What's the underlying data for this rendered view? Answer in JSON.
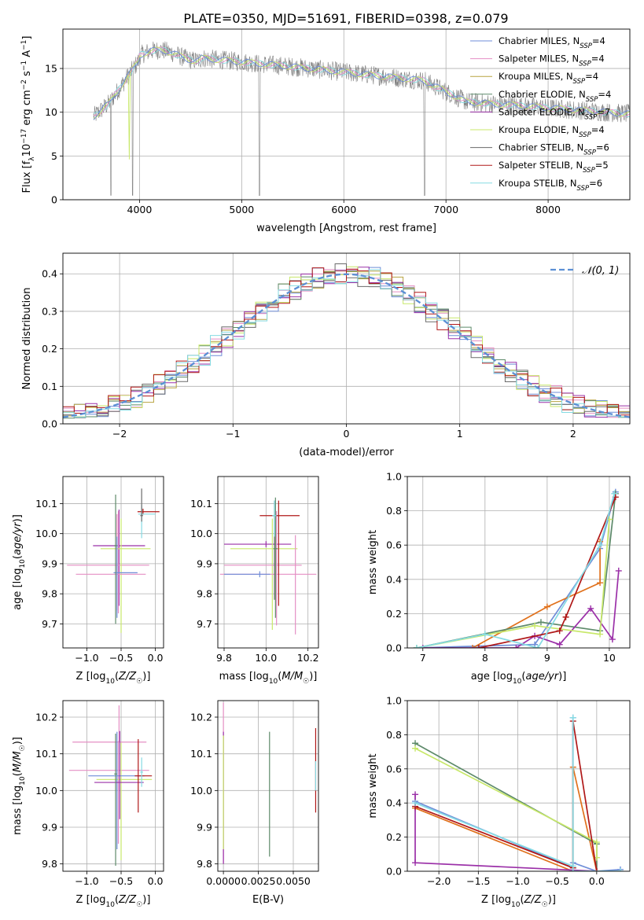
{
  "title": "PLATE=0350, MJD=51691, FIBERID=0398, z=0.079",
  "colors": {
    "series": [
      "#6f8ed8",
      "#e58fc4",
      "#b8a340",
      "#5d8a6a",
      "#9b30a8",
      "#c8e86a",
      "#6a6a6a",
      "#b01818",
      "#86dbe3"
    ],
    "thick": [
      "#6f8ed8",
      "#e0711c",
      "#5d8a6a",
      "#9b30a8",
      "#c8e86a",
      "#b01818",
      "#86dbe3"
    ],
    "grid": "#b0b0b0",
    "normal_curve": "#5b8fd4"
  },
  "legend_items": [
    {
      "base": "Chabrier MILES, N",
      "sub": "SSP",
      "tail": "=4"
    },
    {
      "base": "Salpeter MILES, N",
      "sub": "SSP",
      "tail": "=4"
    },
    {
      "base": "Kroupa MILES, N",
      "sub": "SSP",
      "tail": "=4"
    },
    {
      "base": "Chabrier ELODIE, N",
      "sub": "SSP",
      "tail": "=4"
    },
    {
      "base": "Salpeter ELODIE, N",
      "sub": "SSP",
      "tail": "=7"
    },
    {
      "base": "Kroupa ELODIE, N",
      "sub": "SSP",
      "tail": "=4"
    },
    {
      "base": "Chabrier STELIB, N",
      "sub": "SSP",
      "tail": "=6"
    },
    {
      "base": "Salpeter STELIB, N",
      "sub": "SSP",
      "tail": "=5"
    },
    {
      "base": "Kroupa STELIB, N",
      "sub": "SSP",
      "tail": "=6"
    }
  ],
  "chart_data": [
    {
      "type": "line",
      "id": "spectrum",
      "xlabel": "wavelength [Angstrom, rest frame]",
      "ylabel": "Flux [fλ10⁻¹⁷ erg cm⁻² s⁻¹ A⁻¹]",
      "xlim": [
        3250,
        8800
      ],
      "ylim": [
        0,
        19.5
      ],
      "xticks": [
        4000,
        5000,
        6000,
        7000,
        8000
      ],
      "xtick_labels": [
        "4000",
        "5000",
        "6000",
        "7000",
        "8000"
      ],
      "yticks": [
        0,
        5,
        10,
        15
      ],
      "ytick_labels": [
        "0",
        "5",
        "10",
        "15"
      ],
      "data_x_range": [
        3550,
        8800
      ],
      "series": [
        {
          "id": "data",
          "role": "observed"
        },
        {
          "id": "model",
          "role": "fit"
        }
      ]
    },
    {
      "type": "histogram",
      "id": "residuals",
      "xlabel": "(data-model)/error",
      "ylabel": "Normed distribution",
      "xlim": [
        -2.5,
        2.5
      ],
      "ylim": [
        0,
        0.455
      ],
      "xticks": [
        -2,
        -1,
        0,
        1,
        2
      ],
      "xtick_labels": [
        "−2",
        "−1",
        "0",
        "1",
        "2"
      ],
      "yticks": [
        0,
        0.1,
        0.2,
        0.3,
        0.4
      ],
      "ytick_labels": [
        "0.0",
        "0.1",
        "0.2",
        "0.3",
        "0.4"
      ],
      "bins": 50,
      "legend_label": "𝒩(0, 1)"
    },
    {
      "type": "scatter",
      "id": "age-vs-Z",
      "xlabel": "Z [log10(Z/Z☉)]",
      "ylabel": "age  [log10(age/yr)]",
      "xlim": [
        -1.35,
        0.12
      ],
      "ylim": [
        9.62,
        10.19
      ],
      "xticks": [
        -1.0,
        -0.5,
        0.0
      ],
      "xtick_labels": [
        "−1.0",
        "−0.5",
        "0.0"
      ],
      "yticks": [
        9.7,
        9.8,
        9.9,
        10.0,
        10.1
      ],
      "ytick_labels": [
        "9.7",
        "9.8",
        "9.9",
        "10.0",
        "10.1"
      ],
      "errorbars": [
        {
          "x": -0.53,
          "y": 9.96,
          "xerr": [
            0.38,
            0.38
          ],
          "yerr": [
            0.2,
            0.12
          ],
          "c": 4
        },
        {
          "x": -0.54,
          "y": 9.895,
          "xerr": [
            0.75,
            0.45
          ],
          "yerr": [
            0.16,
            0.18
          ],
          "c": 1
        },
        {
          "x": -0.5,
          "y": 9.95,
          "xerr": [
            0.3,
            0.43
          ],
          "yerr": [
            0.28,
            0.1
          ],
          "c": 5
        },
        {
          "x": -0.56,
          "y": 9.865,
          "xerr": [
            0.6,
            0.42
          ],
          "yerr": [
            0.12,
            0.2
          ],
          "c": 1
        },
        {
          "x": -0.56,
          "y": 9.87,
          "xerr": [
            0.05,
            0.3
          ],
          "yerr": [
            0.15,
            0.12
          ],
          "c": 0
        },
        {
          "x": -0.18,
          "y": 10.073,
          "xerr": [
            0.08,
            0.24
          ],
          "yerr": [
            0.01,
            0.01
          ],
          "c": 7
        },
        {
          "x": -0.2,
          "y": 10.065,
          "xerr": [
            0.05,
            0.2
          ],
          "yerr": [
            0.08,
            0.03
          ],
          "c": 8
        },
        {
          "x": -0.58,
          "y": 9.96,
          "xerr": [
            0.02,
            0.02
          ],
          "yerr": [
            0.26,
            0.17
          ],
          "c": 3
        },
        {
          "x": -0.2,
          "y": 10.06,
          "xerr": [
            0.02,
            0.02
          ],
          "yerr": [
            0.02,
            0.09
          ],
          "c": 6
        }
      ]
    },
    {
      "type": "scatter",
      "id": "age-vs-mass",
      "xlabel": "mass [log10(M/M☉)]",
      "ylabel": "",
      "xlim": [
        9.77,
        10.25
      ],
      "ylim": [
        9.62,
        10.19
      ],
      "xticks": [
        9.8,
        10.0,
        10.2
      ],
      "xtick_labels": [
        "9.8",
        "10.0",
        "10.2"
      ],
      "yticks": [
        9.7,
        9.8,
        9.9,
        10.0,
        10.1
      ],
      "ytick_labels": [
        "9.7",
        "9.8",
        "9.9",
        "10.0",
        "10.1"
      ],
      "errorbars": [
        {
          "x": 10.0,
          "y": 9.965,
          "xerr": [
            0.2,
            0.12
          ],
          "yerr": [
            0.01,
            0.01
          ],
          "c": 4
        },
        {
          "x": 10.03,
          "y": 9.95,
          "xerr": [
            0.2,
            0.12
          ],
          "yerr": [
            0.27,
            0.1
          ],
          "c": 5
        },
        {
          "x": 10.05,
          "y": 9.895,
          "xerr": [
            0.25,
            0.12
          ],
          "yerr": [
            0.2,
            0.18
          ],
          "c": 1
        },
        {
          "x": 10.14,
          "y": 9.865,
          "xerr": [
            0.36,
            0.1
          ],
          "yerr": [
            0.2,
            0.13
          ],
          "c": 1
        },
        {
          "x": 9.97,
          "y": 9.865,
          "xerr": [
            0.17,
            0.05
          ],
          "yerr": [
            0.01,
            0.01
          ],
          "c": 0
        },
        {
          "x": 10.06,
          "y": 10.06,
          "xerr": [
            0.09,
            0.1
          ],
          "yerr": [
            0.3,
            0.05
          ],
          "c": 7
        },
        {
          "x": 10.04,
          "y": 10.06,
          "xerr": [
            0.01,
            0.01
          ],
          "yerr": [
            0.28,
            0.05
          ],
          "c": 6
        },
        {
          "x": 10.045,
          "y": 9.95,
          "xerr": [
            0.01,
            0.01
          ],
          "yerr": [
            0.23,
            0.17
          ],
          "c": 3
        },
        {
          "x": 10.04,
          "y": 10.06,
          "xerr": [
            0.01,
            0.01
          ],
          "yerr": [
            0.07,
            0.05
          ],
          "c": 8
        }
      ]
    },
    {
      "type": "line",
      "id": "mass-weight-vs-age",
      "xlabel": "age  [log10(age/yr)]",
      "ylabel": "mass weight",
      "xlim": [
        6.75,
        10.33
      ],
      "ylim": [
        0,
        1.0
      ],
      "xticks": [
        7,
        8,
        9,
        10
      ],
      "xtick_labels": [
        "7",
        "8",
        "9",
        "10"
      ],
      "yticks": [
        0,
        0.2,
        0.4,
        0.6,
        0.8,
        1.0
      ],
      "ytick_labels": [
        "0.0",
        "0.2",
        "0.4",
        "0.6",
        "0.8",
        "1.0"
      ],
      "series": [
        {
          "c": 0,
          "points": [
            [
              6.9,
              0.0
            ],
            [
              8.8,
              0.02
            ],
            [
              9.85,
              0.58
            ],
            [
              10.1,
              0.91
            ]
          ]
        },
        {
          "c": 1,
          "points": [
            [
              7.8,
              0.0
            ],
            [
              9.0,
              0.24
            ],
            [
              9.85,
              0.38
            ],
            [
              9.85,
              0.62
            ]
          ]
        },
        {
          "c": 2,
          "points": [
            [
              6.9,
              0.0
            ],
            [
              8.9,
              0.15
            ],
            [
              9.85,
              0.1
            ],
            [
              10.1,
              0.9
            ]
          ]
        },
        {
          "c": 3,
          "points": [
            [
              7.0,
              0.0
            ],
            [
              8.5,
              0.0
            ],
            [
              8.8,
              0.07
            ],
            [
              9.2,
              0.02
            ],
            [
              9.7,
              0.23
            ],
            [
              10.05,
              0.05
            ],
            [
              10.15,
              0.45
            ]
          ]
        },
        {
          "c": 4,
          "points": [
            [
              6.9,
              0.0
            ],
            [
              8.8,
              0.13
            ],
            [
              9.85,
              0.08
            ],
            [
              10.0,
              0.75
            ]
          ]
        },
        {
          "c": 5,
          "points": [
            [
              7.9,
              0.0
            ],
            [
              9.2,
              0.1
            ],
            [
              9.3,
              0.18
            ],
            [
              10.1,
              0.88
            ]
          ]
        },
        {
          "c": 6,
          "points": [
            [
              6.9,
              0.0
            ],
            [
              8.0,
              0.08
            ],
            [
              8.85,
              0.0
            ],
            [
              9.85,
              0.6
            ],
            [
              10.08,
              0.9
            ]
          ]
        }
      ]
    },
    {
      "type": "scatter",
      "id": "mass-vs-Z",
      "xlabel": "Z [log10(Z/Z☉)]",
      "ylabel": "mass [log10(M/M☉)]",
      "xlim": [
        -1.35,
        0.12
      ],
      "ylim": [
        9.78,
        10.245
      ],
      "xticks": [
        -1.0,
        -0.5,
        0.0
      ],
      "xtick_labels": [
        "−1.0",
        "−0.5",
        "0.0"
      ],
      "yticks": [
        9.8,
        9.9,
        10.0,
        10.1,
        10.2
      ],
      "ytick_labels": [
        "9.8",
        "9.9",
        "10.0",
        "10.1",
        "10.2"
      ],
      "errorbars": [
        {
          "x": -0.53,
          "y": 10.132,
          "xerr": [
            0.68,
            0.4
          ],
          "yerr": [
            0.0,
            0.1
          ],
          "c": 1
        },
        {
          "x": -0.54,
          "y": 10.055,
          "xerr": [
            0.72,
            0.45
          ],
          "yerr": [
            0.2,
            0.08
          ],
          "c": 1
        },
        {
          "x": -0.5,
          "y": 10.03,
          "xerr": [
            0.36,
            0.45
          ],
          "yerr": [
            0.22,
            0.1
          ],
          "c": 5
        },
        {
          "x": -0.56,
          "y": 10.04,
          "xerr": [
            0.42,
            0.4
          ],
          "yerr": [
            0.2,
            0.12
          ],
          "c": 0
        },
        {
          "x": -0.52,
          "y": 10.022,
          "xerr": [
            0.37,
            0.35
          ],
          "yerr": [
            0.1,
            0.14
          ],
          "c": 4
        },
        {
          "x": -0.25,
          "y": 10.04,
          "xerr": [
            0.05,
            0.2
          ],
          "yerr": [
            0.1,
            0.1
          ],
          "c": 7
        },
        {
          "x": -0.58,
          "y": 10.045,
          "xerr": [
            0.02,
            0.02
          ],
          "yerr": [
            0.25,
            0.11
          ],
          "c": 3
        },
        {
          "x": -0.2,
          "y": 10.05,
          "xerr": [
            0.02,
            0.02
          ],
          "yerr": [
            0.04,
            0.04
          ],
          "c": 8
        }
      ]
    },
    {
      "type": "scatter",
      "id": "mass-vs-ebv",
      "xlabel": "E(B-V)",
      "ylabel": "",
      "xlim": [
        -0.0004,
        0.0068
      ],
      "ylim": [
        9.78,
        10.245
      ],
      "xticks": [
        0.0,
        0.0025,
        0.005
      ],
      "xtick_labels": [
        "0.0000",
        "0.0025",
        "0.0050"
      ],
      "yticks": [
        9.8,
        9.9,
        10.0,
        10.1,
        10.2
      ],
      "ytick_labels": [
        "9.8",
        "9.9",
        "10.0",
        "10.1",
        "10.2"
      ],
      "errorbars": [
        {
          "x": 0.0,
          "y": 10.05,
          "xerr": [
            0,
            0
          ],
          "yerr": [
            0.25,
            0.19
          ],
          "c": 1
        },
        {
          "x": 0.0,
          "y": 10.0,
          "xerr": [
            0,
            0
          ],
          "yerr": [
            0.2,
            0.16
          ],
          "c": 4
        },
        {
          "x": 0.0,
          "y": 10.0,
          "xerr": [
            0,
            0
          ],
          "yerr": [
            0.16,
            0.15
          ],
          "c": 5
        },
        {
          "x": 0.0033,
          "y": 10.0,
          "xerr": [
            0,
            0
          ],
          "yerr": [
            0.18,
            0.16
          ],
          "c": 3
        },
        {
          "x": 0.0066,
          "y": 10.03,
          "xerr": [
            0,
            0
          ],
          "yerr": [
            0.09,
            0.14
          ],
          "c": 7
        },
        {
          "x": 0.0066,
          "y": 10.04,
          "xerr": [
            0,
            0
          ],
          "yerr": [
            0.04,
            0.04
          ],
          "c": 8
        }
      ]
    },
    {
      "type": "line",
      "id": "mass-weight-vs-Z",
      "xlabel": "Z [log10(Z/Z☉)]",
      "ylabel": "mass weight",
      "xlim": [
        -2.4,
        0.42
      ],
      "ylim": [
        0,
        1.0
      ],
      "xticks": [
        -2.0,
        -1.5,
        -1.0,
        -0.5,
        0.0
      ],
      "xtick_labels": [
        "−2.0",
        "−1.5",
        "−1.0",
        "−0.5",
        "0.0"
      ],
      "yticks": [
        0,
        0.2,
        0.4,
        0.6,
        0.8,
        1.0
      ],
      "ytick_labels": [
        "0.0",
        "0.2",
        "0.4",
        "0.6",
        "0.8",
        "1.0"
      ],
      "series": [
        {
          "c": 0,
          "points": [
            [
              -2.3,
              0.41
            ],
            [
              -0.3,
              0.02
            ],
            [
              -0.3,
              0.9
            ],
            [
              -0.3,
              0.05
            ],
            [
              0.0,
              0.0
            ],
            [
              0.3,
              0.01
            ]
          ]
        },
        {
          "c": 1,
          "points": [
            [
              -2.3,
              0.37
            ],
            [
              -0.3,
              0.0
            ],
            [
              -0.3,
              0.61
            ],
            [
              0.0,
              0.0
            ]
          ]
        },
        {
          "c": 2,
          "points": [
            [
              -2.3,
              0.75
            ],
            [
              0.0,
              0.16
            ],
            [
              0.0,
              0.0
            ]
          ]
        },
        {
          "c": 3,
          "points": [
            [
              -2.3,
              0.45
            ],
            [
              -2.3,
              0.05
            ],
            [
              0.0,
              0.0
            ]
          ]
        },
        {
          "c": 4,
          "points": [
            [
              -2.3,
              0.72
            ],
            [
              0.0,
              0.17
            ],
            [
              0.0,
              0.08
            ]
          ]
        },
        {
          "c": 5,
          "points": [
            [
              -2.3,
              0.38
            ],
            [
              -0.3,
              0.02
            ],
            [
              -0.3,
              0.88
            ],
            [
              0.0,
              0.0
            ]
          ]
        },
        {
          "c": 6,
          "points": [
            [
              -2.3,
              0.4
            ],
            [
              -0.3,
              0.03
            ],
            [
              -0.3,
              0.9
            ],
            [
              -0.3,
              0.0
            ],
            [
              0.3,
              0.0
            ]
          ]
        }
      ]
    }
  ]
}
